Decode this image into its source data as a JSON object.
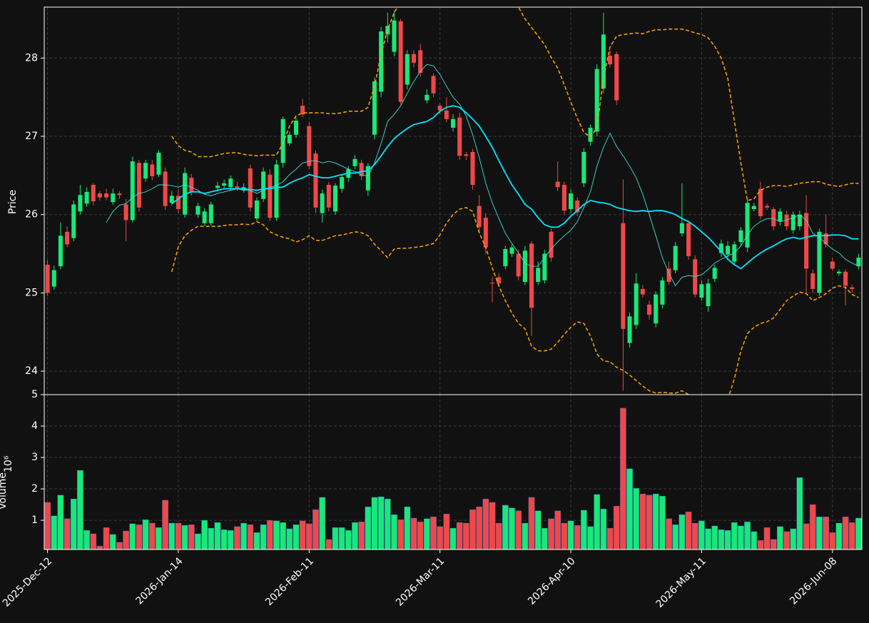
{
  "chart_data": {
    "type": "candlestick",
    "ylabel": "Price",
    "volume_ylabel": "Volume",
    "volume_exponent": "10⁶",
    "ylim": [
      23.7,
      28.65
    ],
    "yticks": [
      24,
      25,
      26,
      27,
      28
    ],
    "volume_ylim": [
      0.07,
      5
    ],
    "volume_yticks": [
      1,
      2,
      3,
      4,
      5
    ],
    "grid": true,
    "up_color": "#18e878",
    "down_color": "#f04848",
    "categories": [
      "2025-Dec-12",
      null,
      null,
      null,
      null,
      null,
      null,
      null,
      null,
      null,
      null,
      null,
      null,
      null,
      null,
      null,
      null,
      null,
      null,
      null,
      "2026-Jan-14",
      null,
      null,
      null,
      null,
      null,
      null,
      null,
      null,
      null,
      null,
      null,
      null,
      null,
      null,
      null,
      null,
      null,
      null,
      null,
      "2026-Feb-11",
      null,
      null,
      null,
      null,
      null,
      null,
      null,
      null,
      null,
      null,
      null,
      null,
      null,
      null,
      null,
      null,
      null,
      null,
      null,
      "2026-Mar-11",
      null,
      null,
      null,
      null,
      null,
      null,
      null,
      null,
      null,
      null,
      null,
      null,
      null,
      null,
      null,
      null,
      null,
      null,
      null,
      "2026-Apr-10",
      null,
      null,
      null,
      null,
      null,
      null,
      null,
      null,
      null,
      null,
      null,
      null,
      null,
      null,
      null,
      null,
      null,
      null,
      null,
      "2026-May-11",
      null,
      null,
      null,
      null,
      null,
      null,
      null,
      null,
      null,
      null,
      null,
      null,
      null,
      null,
      null,
      null,
      null,
      null,
      null,
      "2026-Jun-08",
      null,
      null,
      null,
      null
    ],
    "open": [
      25.36,
      25.08,
      25.34,
      25.78,
      25.7,
      26.04,
      26.14,
      26.38,
      26.27,
      26.27,
      26.16,
      26.27,
      26.13,
      25.93,
      26.66,
      26.46,
      26.64,
      26.51,
      26.55,
      26.15,
      26.24,
      26.0,
      26.47,
      26.0,
      25.89,
      25.89,
      26.34,
      26.37,
      26.35,
      26.36,
      26.31,
      26.59,
      25.95,
      26.2,
      26.51,
      25.96,
      26.66,
      26.91,
      27.02,
      27.39,
      27.13,
      26.78,
      26.02,
      26.38,
      26.04,
      26.33,
      26.47,
      26.62,
      26.66,
      26.31,
      27.02,
      27.57,
      28.3,
      28.08,
      28.47,
      27.66,
      28.05,
      28.1,
      27.46,
      27.77,
      27.39,
      27.33,
      27.11,
      27.24,
      26.77,
      26.8,
      26.11,
      25.96,
      25.13,
      25.2,
      25.34,
      25.5,
      25.5,
      25.14,
      25.63,
      25.14,
      25.16,
      25.78,
      26.42,
      26.38,
      26.07,
      26.18,
      26.4,
      26.93,
      27.06,
      27.61,
      28.03,
      28.05,
      25.89,
      24.36,
      24.59,
      25.05,
      24.85,
      24.61,
      24.85,
      25.31,
      25.29,
      25.76,
      25.89,
      25.43,
      24.94,
      24.83,
      25.18,
      25.51,
      25.49,
      25.4,
      25.65,
      25.58,
      26.07,
      26.33,
      26.11,
      26.07,
      25.91,
      26.0,
      25.8,
      25.85,
      26.02,
      25.25,
      25.0,
      25.76,
      25.4,
      25.25,
      25.27,
      25.07,
      25.34
    ],
    "high": [
      25.42,
      25.35,
      25.9,
      25.85,
      26.18,
      26.38,
      26.35,
      26.4,
      26.3,
      26.33,
      26.33,
      26.3,
      26.2,
      26.74,
      26.7,
      26.7,
      26.7,
      26.82,
      26.6,
      26.3,
      26.32,
      26.6,
      26.52,
      26.15,
      26.08,
      26.16,
      26.42,
      26.45,
      26.5,
      26.42,
      26.4,
      26.64,
      26.22,
      26.6,
      26.58,
      26.7,
      27.25,
      27.06,
      27.24,
      27.48,
      27.18,
      26.82,
      26.32,
      26.42,
      26.4,
      26.52,
      26.62,
      26.76,
      26.7,
      26.66,
      27.75,
      28.4,
      28.58,
      28.6,
      28.5,
      28.1,
      28.1,
      28.18,
      27.6,
      27.8,
      27.42,
      27.5,
      27.28,
      27.3,
      26.8,
      26.84,
      26.25,
      26.02,
      25.2,
      25.25,
      25.6,
      25.62,
      25.55,
      25.6,
      25.66,
      25.4,
      25.55,
      25.82,
      26.68,
      26.42,
      26.32,
      26.22,
      26.85,
      27.15,
      27.92,
      28.58,
      28.1,
      28.08,
      26.45,
      24.75,
      25.25,
      25.1,
      24.9,
      25.02,
      25.2,
      25.4,
      25.65,
      26.4,
      25.92,
      25.48,
      25.16,
      25.18,
      25.36,
      25.68,
      25.66,
      25.66,
      25.84,
      26.2,
      26.15,
      26.42,
      26.14,
      26.1,
      26.08,
      26.05,
      26.04,
      26.05,
      26.25,
      25.3,
      25.82,
      26.0,
      25.45,
      25.3,
      25.3,
      25.1,
      25.5
    ],
    "low": [
      24.96,
      25.04,
      25.3,
      25.58,
      25.66,
      26.0,
      26.1,
      26.12,
      26.18,
      26.18,
      26.12,
      26.2,
      25.66,
      25.9,
      26.04,
      26.42,
      26.44,
      26.48,
      26.06,
      26.12,
      26.02,
      25.96,
      26.24,
      25.96,
      25.86,
      25.86,
      26.3,
      26.34,
      26.3,
      26.3,
      26.28,
      26.04,
      25.92,
      26.16,
      25.92,
      25.92,
      26.6,
      26.88,
      26.98,
      27.24,
      26.58,
      26.02,
      25.9,
      26.04,
      26.0,
      26.28,
      26.42,
      26.58,
      26.44,
      26.24,
      26.96,
      27.5,
      28.2,
      28.02,
      27.4,
      27.6,
      27.88,
      27.76,
      27.42,
      27.5,
      27.28,
      27.18,
      27.06,
      26.7,
      26.7,
      26.32,
      25.78,
      25.5,
      24.88,
      25.08,
      25.3,
      25.46,
      25.16,
      25.1,
      24.45,
      25.1,
      25.12,
      25.4,
      26.3,
      26.0,
      26.02,
      25.98,
      26.35,
      26.88,
      27.0,
      27.55,
      27.88,
      27.4,
      23.75,
      24.3,
      24.54,
      24.94,
      24.66,
      24.56,
      24.8,
      25.1,
      25.25,
      25.72,
      25.42,
      24.94,
      24.9,
      24.76,
      25.14,
      25.46,
      25.45,
      25.36,
      25.6,
      25.52,
      26.04,
      25.94,
      26.06,
      25.8,
      25.86,
      25.8,
      25.76,
      25.8,
      25.0,
      25.0,
      24.96,
      25.58,
      25.28,
      25.22,
      24.84,
      25.0,
      25.3
    ],
    "close": [
      25.0,
      25.29,
      25.73,
      25.62,
      26.13,
      26.25,
      26.29,
      26.17,
      26.22,
      26.22,
      26.27,
      26.25,
      25.93,
      26.68,
      26.09,
      26.66,
      26.49,
      26.79,
      26.11,
      26.24,
      26.07,
      26.53,
      26.29,
      26.11,
      26.04,
      26.13,
      26.37,
      26.4,
      26.46,
      26.34,
      26.35,
      26.09,
      26.18,
      26.55,
      25.96,
      26.64,
      27.22,
      27.02,
      27.2,
      27.28,
      26.62,
      26.09,
      26.27,
      26.09,
      26.37,
      26.48,
      26.58,
      26.71,
      26.49,
      26.62,
      27.7,
      28.34,
      28.41,
      28.48,
      27.44,
      28.05,
      27.94,
      27.81,
      27.53,
      27.55,
      27.33,
      27.22,
      27.22,
      26.75,
      26.75,
      26.38,
      25.84,
      25.58,
      25.12,
      25.12,
      25.56,
      25.58,
      25.21,
      25.54,
      24.81,
      25.32,
      25.5,
      25.45,
      26.35,
      26.05,
      26.27,
      26.03,
      26.8,
      27.11,
      27.86,
      28.3,
      27.92,
      27.46,
      24.54,
      24.7,
      25.12,
      24.98,
      24.72,
      24.98,
      25.16,
      25.14,
      25.6,
      25.89,
      25.47,
      24.98,
      25.11,
      25.12,
      25.32,
      25.63,
      25.6,
      25.62,
      25.8,
      26.15,
      26.11,
      25.98,
      26.09,
      25.85,
      26.04,
      25.85,
      26.0,
      26.0,
      25.31,
      25.05,
      25.78,
      25.62,
      25.31,
      25.27,
      25.09,
      25.05,
      25.45
    ],
    "volume": [
      1.57,
      1.14,
      1.8,
      1.05,
      1.68,
      2.59,
      0.68,
      0.57,
      0.18,
      0.77,
      0.55,
      0.3,
      0.66,
      0.89,
      0.86,
      1.02,
      0.91,
      0.77,
      1.64,
      0.91,
      0.91,
      0.84,
      0.86,
      0.57,
      1.0,
      0.75,
      0.93,
      0.7,
      0.68,
      0.8,
      0.91,
      0.86,
      0.61,
      0.86,
      1.0,
      0.98,
      0.93,
      0.73,
      0.86,
      0.98,
      0.89,
      1.34,
      1.73,
      0.39,
      0.77,
      0.77,
      0.68,
      0.93,
      0.95,
      1.43,
      1.73,
      1.75,
      1.68,
      1.18,
      1.02,
      1.43,
      1.07,
      0.95,
      1.05,
      1.11,
      0.8,
      1.2,
      0.75,
      0.93,
      0.91,
      1.34,
      1.43,
      1.68,
      1.57,
      0.91,
      1.48,
      1.39,
      1.3,
      0.91,
      1.73,
      1.3,
      0.75,
      1.05,
      1.3,
      0.91,
      0.98,
      0.84,
      1.32,
      0.8,
      1.82,
      1.36,
      0.75,
      1.45,
      4.57,
      2.64,
      2.02,
      1.84,
      1.8,
      1.84,
      1.77,
      1.05,
      0.86,
      1.18,
      1.27,
      0.91,
      0.98,
      0.73,
      0.82,
      0.7,
      0.68,
      0.93,
      0.82,
      0.95,
      0.64,
      0.36,
      0.77,
      0.39,
      0.8,
      0.64,
      0.73,
      2.36,
      0.89,
      1.5,
      1.11,
      1.11,
      0.61,
      0.91,
      1.11,
      0.93,
      1.07
    ],
    "overlays": [
      {
        "color": "#40e0d0",
        "width": 0.9,
        "style": "solid",
        "values": [
          null,
          null,
          null,
          null,
          null,
          null,
          null,
          null,
          null,
          25.9,
          26.04,
          26.12,
          26.14,
          26.22,
          26.27,
          26.29,
          26.33,
          26.38,
          26.38,
          26.37,
          26.35,
          26.38,
          26.35,
          26.31,
          26.26,
          26.24,
          26.27,
          26.29,
          26.31,
          26.33,
          26.31,
          26.31,
          26.27,
          26.31,
          26.35,
          26.37,
          26.42,
          26.51,
          26.58,
          26.66,
          26.68,
          26.69,
          26.66,
          26.68,
          26.66,
          26.62,
          26.58,
          26.55,
          26.51,
          26.49,
          26.66,
          26.91,
          27.19,
          27.28,
          27.39,
          27.55,
          27.7,
          27.83,
          27.92,
          27.9,
          27.79,
          27.64,
          27.5,
          27.41,
          27.26,
          27.02,
          26.73,
          26.4,
          26.15,
          25.95,
          25.76,
          25.63,
          25.51,
          25.38,
          25.34,
          25.34,
          25.45,
          25.56,
          25.65,
          25.73,
          25.8,
          25.91,
          26.09,
          26.29,
          26.62,
          26.86,
          27.04,
          26.87,
          26.75,
          26.62,
          26.47,
          26.26,
          26.0,
          25.73,
          25.45,
          25.25,
          25.09,
          25.2,
          25.22,
          25.21,
          25.23,
          25.3,
          25.38,
          25.43,
          25.47,
          25.51,
          25.6,
          25.74,
          25.85,
          25.91,
          25.95,
          25.95,
          25.91,
          25.93,
          25.96,
          26.0,
          25.93,
          25.76,
          25.71,
          25.63,
          25.56,
          25.51,
          25.43,
          25.38,
          25.34
        ]
      },
      {
        "color": "#00e5ff",
        "width": 1.8,
        "style": "solid",
        "values": [
          null,
          null,
          null,
          null,
          null,
          null,
          null,
          null,
          null,
          null,
          null,
          null,
          null,
          null,
          null,
          null,
          null,
          null,
          null,
          26.14,
          26.2,
          26.26,
          26.29,
          26.29,
          26.27,
          26.29,
          26.31,
          26.33,
          26.33,
          26.33,
          26.33,
          26.32,
          26.31,
          26.33,
          26.33,
          26.35,
          26.35,
          26.4,
          26.44,
          26.47,
          26.51,
          26.49,
          26.47,
          26.47,
          26.49,
          26.51,
          26.53,
          26.53,
          26.55,
          26.56,
          26.64,
          26.75,
          26.87,
          26.97,
          27.04,
          27.1,
          27.15,
          27.17,
          27.19,
          27.24,
          27.32,
          27.37,
          27.39,
          27.37,
          27.3,
          27.22,
          27.13,
          27.0,
          26.86,
          26.69,
          26.53,
          26.38,
          26.26,
          26.13,
          26.07,
          25.96,
          25.87,
          25.84,
          25.84,
          25.89,
          25.98,
          26.05,
          26.13,
          26.18,
          26.16,
          26.15,
          26.13,
          26.09,
          26.07,
          26.05,
          26.04,
          26.05,
          26.04,
          26.05,
          26.05,
          26.03,
          26.0,
          25.95,
          25.91,
          25.85,
          25.78,
          25.71,
          25.62,
          25.53,
          25.43,
          25.36,
          25.31,
          25.38,
          25.45,
          25.51,
          25.56,
          25.6,
          25.65,
          25.69,
          25.71,
          25.69,
          25.71,
          25.73,
          25.73,
          25.73,
          25.74,
          25.74,
          25.73,
          25.69,
          25.69
        ]
      },
      {
        "color": "#ffa500",
        "width": 1.5,
        "style": "dashed",
        "values": [
          null,
          null,
          null,
          null,
          null,
          null,
          null,
          null,
          null,
          null,
          null,
          null,
          null,
          null,
          null,
          null,
          null,
          null,
          null,
          27.0,
          26.88,
          26.82,
          26.8,
          26.74,
          26.74,
          26.74,
          26.76,
          26.78,
          26.79,
          26.79,
          26.77,
          26.76,
          26.75,
          26.76,
          26.76,
          26.76,
          26.91,
          27.13,
          27.26,
          27.3,
          27.3,
          27.3,
          27.3,
          27.29,
          27.29,
          27.3,
          27.32,
          27.32,
          27.32,
          27.37,
          27.64,
          28.05,
          28.36,
          28.58,
          28.72,
          28.85,
          28.95,
          29.05,
          29.1,
          29.15,
          29.2,
          29.2,
          29.2,
          29.15,
          29.1,
          29.05,
          29.0,
          28.95,
          28.9,
          28.8,
          28.75,
          28.7,
          28.65,
          28.5,
          28.39,
          28.28,
          28.17,
          28.01,
          27.87,
          27.66,
          27.44,
          27.23,
          27.05,
          26.99,
          27.11,
          27.74,
          28.14,
          28.28,
          28.3,
          28.31,
          28.32,
          28.31,
          28.34,
          28.36,
          28.36,
          28.37,
          28.37,
          28.37,
          28.35,
          28.32,
          28.3,
          28.26,
          28.15,
          28.0,
          27.74,
          27.2,
          26.66,
          26.18,
          26.2,
          26.31,
          26.35,
          26.37,
          26.37,
          26.36,
          26.38,
          26.4,
          26.41,
          26.42,
          26.42,
          26.39,
          26.37,
          26.36,
          26.38,
          26.4,
          26.4
        ]
      },
      {
        "color": "#ffa500",
        "width": 1.5,
        "style": "dashed",
        "values": [
          null,
          null,
          null,
          null,
          null,
          null,
          null,
          null,
          null,
          null,
          null,
          null,
          null,
          null,
          null,
          null,
          null,
          null,
          null,
          25.27,
          25.59,
          25.73,
          25.8,
          25.85,
          25.85,
          25.85,
          25.85,
          25.86,
          25.87,
          25.87,
          25.88,
          25.87,
          25.91,
          25.87,
          25.78,
          25.74,
          25.71,
          25.69,
          25.65,
          25.68,
          25.73,
          25.67,
          25.67,
          25.7,
          25.73,
          25.74,
          25.76,
          25.78,
          25.77,
          25.73,
          25.62,
          25.54,
          25.45,
          25.56,
          25.57,
          25.57,
          25.58,
          25.59,
          25.61,
          25.63,
          25.74,
          25.89,
          26.0,
          26.07,
          26.09,
          26.04,
          25.77,
          25.58,
          25.32,
          25.09,
          24.9,
          24.74,
          24.61,
          24.54,
          24.32,
          24.26,
          24.26,
          24.28,
          24.37,
          24.47,
          24.56,
          24.63,
          24.61,
          24.45,
          24.22,
          24.13,
          24.12,
          24.05,
          24.01,
          23.95,
          23.88,
          23.81,
          23.75,
          23.72,
          23.73,
          23.72,
          23.72,
          23.75,
          23.7,
          23.64,
          23.53,
          23.53,
          23.53,
          23.57,
          23.64,
          23.9,
          24.26,
          24.48,
          24.56,
          24.61,
          24.63,
          24.68,
          24.79,
          24.9,
          24.96,
          25.01,
          24.99,
          24.9,
          24.94,
          24.99,
          25.06,
          25.09,
          25.07,
          24.98,
          24.94
        ]
      }
    ]
  }
}
